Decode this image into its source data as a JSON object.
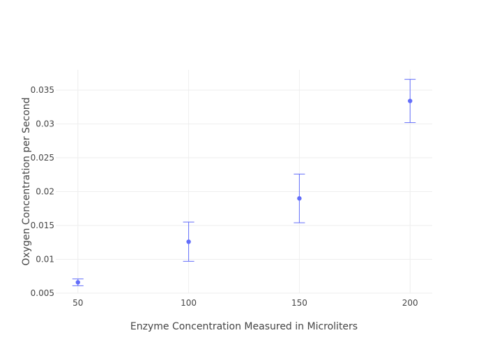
{
  "chart_data": {
    "type": "scatter",
    "title": "",
    "xlabel": "Enzyme Concentration Measured in Microliters",
    "ylabel": "Oxygen Concentration per Second",
    "xlim": [
      40,
      210
    ],
    "ylim": [
      0.005,
      0.038
    ],
    "x_ticks": [
      50,
      100,
      150,
      200
    ],
    "x_tick_labels": [
      "50",
      "100",
      "150",
      "200"
    ],
    "y_ticks": [
      0.005,
      0.01,
      0.015,
      0.02,
      0.025,
      0.03,
      0.035
    ],
    "y_tick_labels": [
      "0.005",
      "0.01",
      "0.015",
      "0.02",
      "0.025",
      "0.03",
      "0.035"
    ],
    "grid": true,
    "legend": false,
    "series": [
      {
        "color": "#636efa",
        "points": [
          {
            "x": 50,
            "y": 0.0066,
            "err_low": 0.0061,
            "err_high": 0.0071
          },
          {
            "x": 100,
            "y": 0.0126,
            "err_low": 0.0097,
            "err_high": 0.0155
          },
          {
            "x": 150,
            "y": 0.019,
            "err_low": 0.0154,
            "err_high": 0.0226
          },
          {
            "x": 200,
            "y": 0.0334,
            "err_low": 0.0302,
            "err_high": 0.0366
          }
        ]
      }
    ]
  }
}
